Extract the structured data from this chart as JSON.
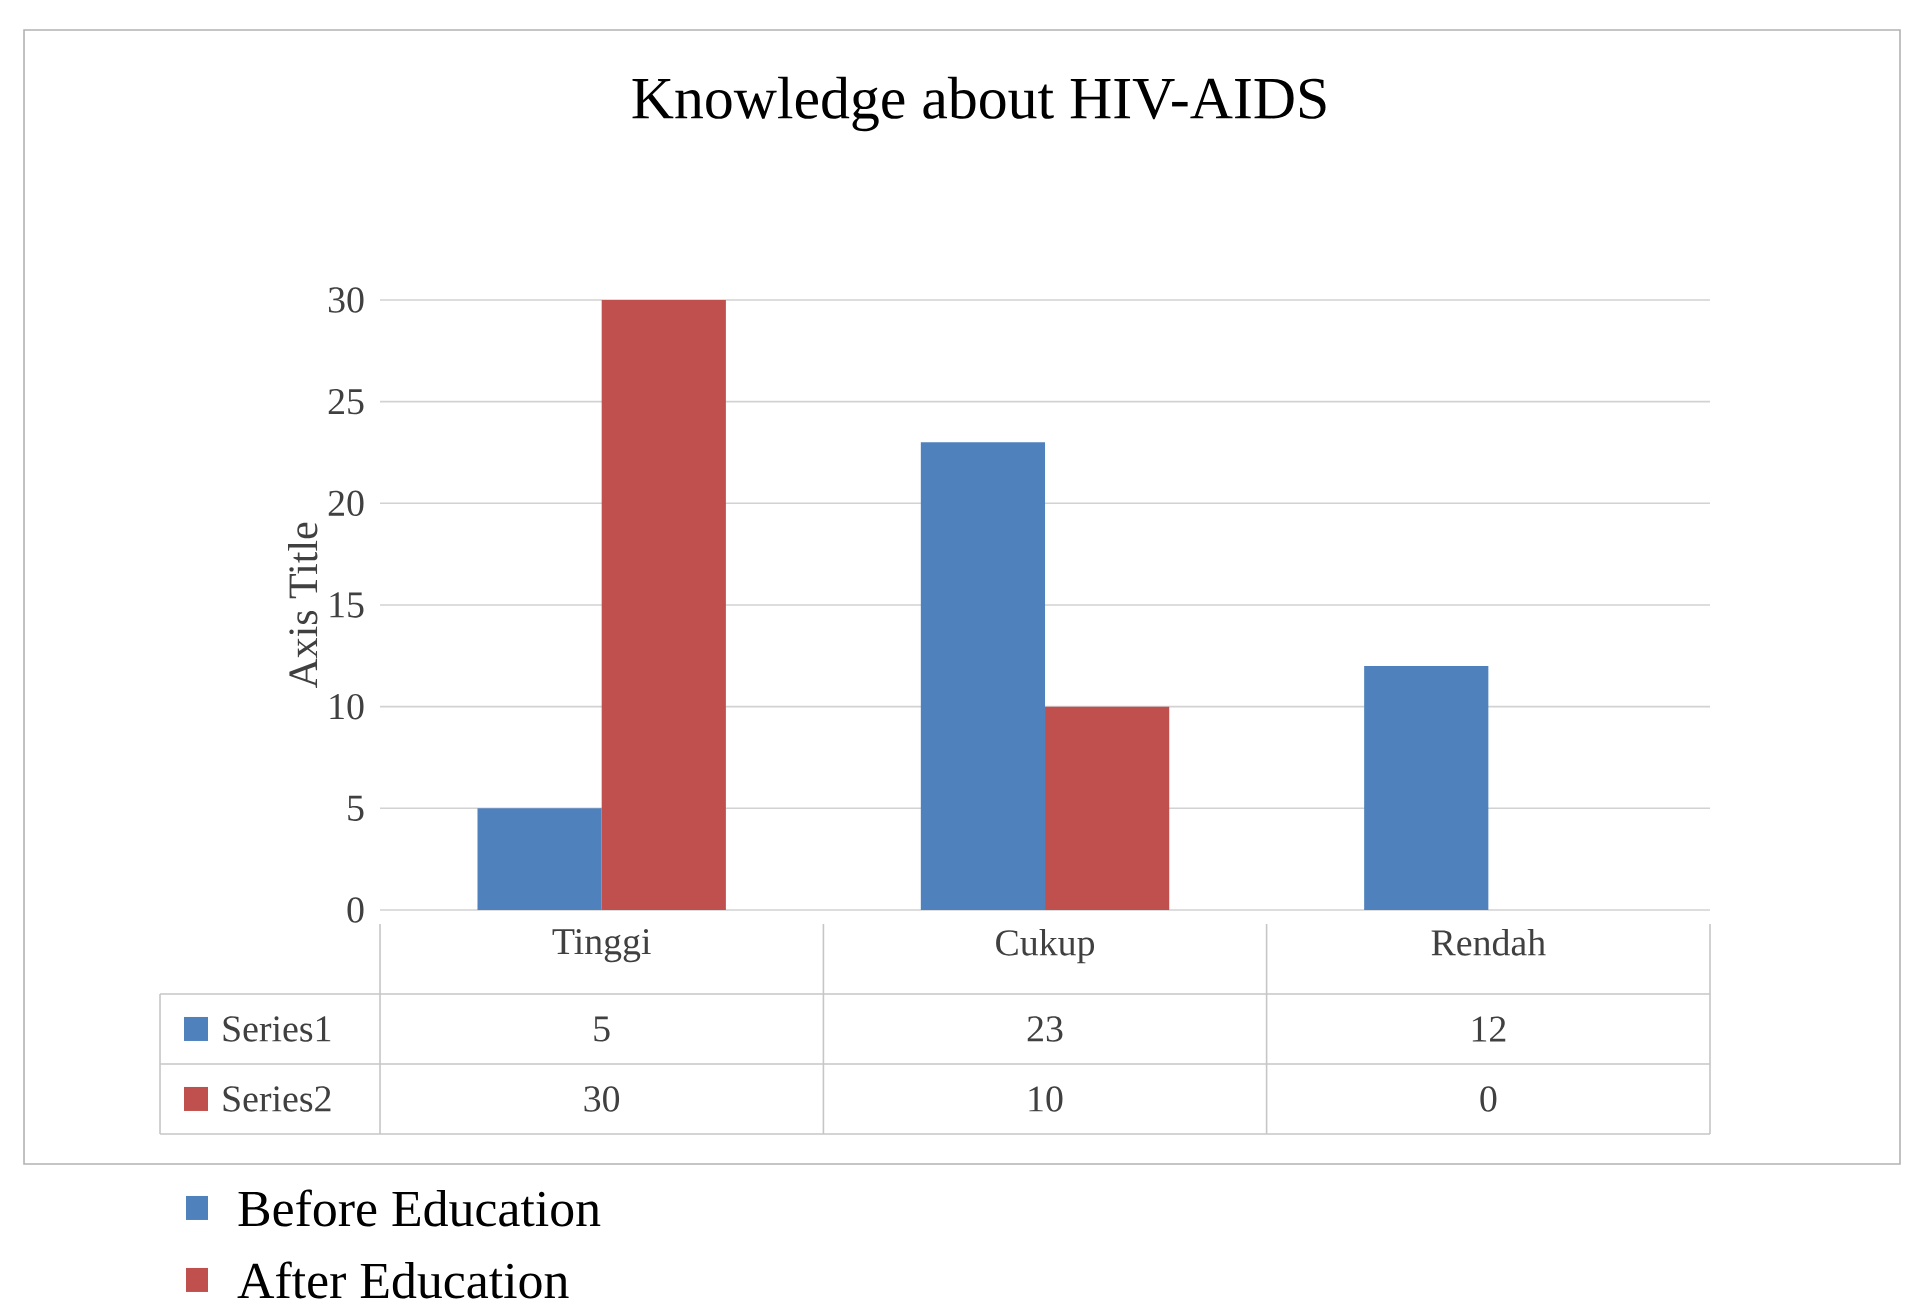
{
  "chart_data": {
    "type": "bar",
    "title": "Knowledge about HIV-AIDS",
    "ylabel": "Axis Title",
    "categories": [
      "Tinggi",
      "Cukup",
      "Rendah"
    ],
    "series": [
      {
        "name": "Series1",
        "color": "#4f81bd",
        "values": [
          5,
          23,
          12
        ]
      },
      {
        "name": "Series2",
        "color": "#c0504d",
        "values": [
          30,
          10,
          0
        ]
      }
    ],
    "ylim": [
      0,
      30
    ],
    "yticks": [
      0,
      5,
      10,
      15,
      20,
      25,
      30
    ],
    "grid": "y",
    "data_labels": true,
    "legend": "bottom",
    "annotations": [
      "Before Education",
      "After Education"
    ]
  }
}
